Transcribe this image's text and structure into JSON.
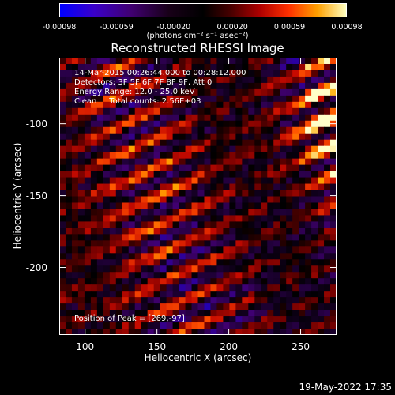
{
  "colorbar": {
    "ticks": [
      "-0.00098",
      "-0.00059",
      "-0.00020",
      "0.00020",
      "0.00059",
      "0.00098"
    ],
    "unit": "(photons cm⁻² s⁻¹ asec⁻²)",
    "colors": [
      "#0000ff",
      "#400070",
      "#000000",
      "#b00000",
      "#ff3000",
      "#ffa000",
      "#ffffc0"
    ]
  },
  "info": {
    "time_range": "14-Mar-2015 00:26:44.000 to 00:28:12.000",
    "detectors": "Detectors: 3F 5F 6F 7F 8F 9F, Att 0",
    "energy": "Energy Range: 12.0 - 25.0 keV",
    "clean": "Clean     Total counts: 2.56E+03",
    "peak": "Position of Peak = [269,-97]"
  },
  "timestamp": "19-May-2022 17:35",
  "chart_data": {
    "type": "heatmap",
    "title": "Reconstructed RHESSI Image",
    "xlabel": "Heliocentric X (arcsec)",
    "ylabel": "Heliocentric Y (arcsec)",
    "xlim": [
      82,
      275
    ],
    "ylim": [
      -247,
      -54
    ],
    "xticks": [
      100,
      150,
      200,
      250
    ],
    "yticks": [
      -100,
      -150,
      -200
    ],
    "colorbar_range": [
      -0.00098,
      0.00098
    ],
    "peak": [
      269,
      -97
    ]
  }
}
